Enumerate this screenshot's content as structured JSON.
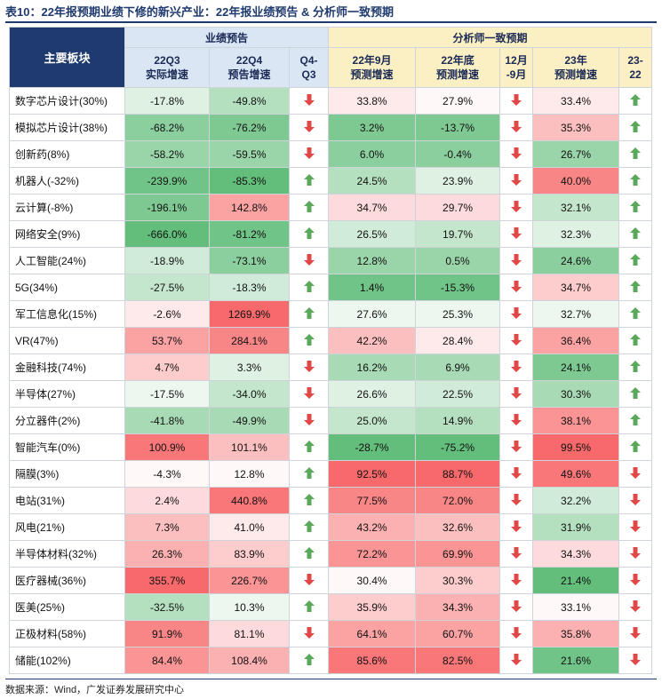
{
  "title": "表10：22年报预期业绩下修的新兴产业：22年报业绩预告 & 分析师一致预期",
  "header": {
    "sector": "主要板块",
    "group1": "业绩预告",
    "group2": "分析师一致预期",
    "c1": [
      "22Q3",
      "实际增速"
    ],
    "c2": [
      "22Q4",
      "预告增速"
    ],
    "c3": [
      "Q4-",
      "Q3"
    ],
    "c4": [
      "22年9月",
      "预测增速"
    ],
    "c5": [
      "22年底",
      "预测增速"
    ],
    "c6": [
      "12月",
      "-9月"
    ],
    "c7": [
      "23年",
      "预测增速"
    ],
    "c8": [
      "23-",
      "22"
    ]
  },
  "colors": {
    "up_arrow": "#5aa85a",
    "down_arrow": "#e04848",
    "green_strong": "#63be7b",
    "green_light": "#e6f4e9",
    "red_strong": "#f8696b",
    "red_light": "#fde4e4"
  },
  "rows": [
    {
      "name": "数字芯片设计(30%)",
      "v1": "-17.8%",
      "v2": "-49.8%",
      "a1": "down",
      "v3": "33.8%",
      "v4": "27.9%",
      "a2": "down",
      "v5": "33.4%",
      "a3": "up"
    },
    {
      "name": "模拟芯片设计(38%)",
      "v1": "-68.2%",
      "v2": "-76.2%",
      "a1": "down",
      "v3": "3.2%",
      "v4": "-13.7%",
      "a2": "down",
      "v5": "35.3%",
      "a3": "up"
    },
    {
      "name": "创新药(8%)",
      "v1": "-58.2%",
      "v2": "-59.5%",
      "a1": "down",
      "v3": "6.0%",
      "v4": "-0.4%",
      "a2": "down",
      "v5": "26.7%",
      "a3": "up"
    },
    {
      "name": "机器人(-32%)",
      "v1": "-239.9%",
      "v2": "-85.3%",
      "a1": "up",
      "v3": "24.5%",
      "v4": "23.9%",
      "a2": "down",
      "v5": "40.0%",
      "a3": "up"
    },
    {
      "name": "云计算(-8%)",
      "v1": "-196.1%",
      "v2": "142.8%",
      "a1": "up",
      "v3": "34.7%",
      "v4": "29.7%",
      "a2": "down",
      "v5": "32.1%",
      "a3": "up"
    },
    {
      "name": "网络安全(9%)",
      "v1": "-666.0%",
      "v2": "-81.2%",
      "a1": "up",
      "v3": "26.5%",
      "v4": "19.7%",
      "a2": "down",
      "v5": "32.3%",
      "a3": "up"
    },
    {
      "name": "人工智能(24%)",
      "v1": "-18.9%",
      "v2": "-73.1%",
      "a1": "down",
      "v3": "12.8%",
      "v4": "0.5%",
      "a2": "down",
      "v5": "24.6%",
      "a3": "up"
    },
    {
      "name": "5G(34%)",
      "v1": "-27.5%",
      "v2": "-18.3%",
      "a1": "up",
      "v3": "1.4%",
      "v4": "-15.3%",
      "a2": "down",
      "v5": "34.7%",
      "a3": "up"
    },
    {
      "name": "军工信息化(15%)",
      "v1": "-2.6%",
      "v2": "1269.9%",
      "a1": "up",
      "v3": "27.6%",
      "v4": "25.3%",
      "a2": "down",
      "v5": "32.7%",
      "a3": "up"
    },
    {
      "name": "VR(47%)",
      "v1": "53.7%",
      "v2": "284.1%",
      "a1": "up",
      "v3": "42.2%",
      "v4": "28.4%",
      "a2": "down",
      "v5": "36.4%",
      "a3": "up"
    },
    {
      "name": "金融科技(74%)",
      "v1": "4.7%",
      "v2": "3.3%",
      "a1": "down",
      "v3": "16.2%",
      "v4": "6.9%",
      "a2": "down",
      "v5": "24.1%",
      "a3": "up"
    },
    {
      "name": "半导体(27%)",
      "v1": "-17.5%",
      "v2": "-34.0%",
      "a1": "down",
      "v3": "26.6%",
      "v4": "22.5%",
      "a2": "down",
      "v5": "30.3%",
      "a3": "up"
    },
    {
      "name": "分立器件(2%)",
      "v1": "-41.8%",
      "v2": "-49.9%",
      "a1": "down",
      "v3": "25.0%",
      "v4": "14.9%",
      "a2": "down",
      "v5": "38.1%",
      "a3": "up"
    },
    {
      "name": "智能汽车(0%)",
      "v1": "100.9%",
      "v2": "101.1%",
      "a1": "up",
      "v3": "-28.7%",
      "v4": "-75.2%",
      "a2": "down",
      "v5": "99.5%",
      "a3": "up"
    },
    {
      "name": "隔膜(3%)",
      "v1": "-4.3%",
      "v2": "12.8%",
      "a1": "up",
      "v3": "92.5%",
      "v4": "88.7%",
      "a2": "down",
      "v5": "49.6%",
      "a3": "down"
    },
    {
      "name": "电站(31%)",
      "v1": "2.4%",
      "v2": "440.8%",
      "a1": "up",
      "v3": "77.5%",
      "v4": "72.0%",
      "a2": "down",
      "v5": "32.2%",
      "a3": "down"
    },
    {
      "name": "风电(21%)",
      "v1": "7.3%",
      "v2": "41.0%",
      "a1": "up",
      "v3": "43.2%",
      "v4": "32.6%",
      "a2": "down",
      "v5": "31.9%",
      "a3": "down"
    },
    {
      "name": "半导体材料(32%)",
      "v1": "26.3%",
      "v2": "83.9%",
      "a1": "up",
      "v3": "72.2%",
      "v4": "69.9%",
      "a2": "down",
      "v5": "34.3%",
      "a3": "down"
    },
    {
      "name": "医疗器械(36%)",
      "v1": "355.7%",
      "v2": "226.7%",
      "a1": "down",
      "v3": "30.4%",
      "v4": "30.3%",
      "a2": "down",
      "v5": "21.4%",
      "a3": "down"
    },
    {
      "name": "医美(25%)",
      "v1": "-32.5%",
      "v2": "10.3%",
      "a1": "up",
      "v3": "35.9%",
      "v4": "34.3%",
      "a2": "down",
      "v5": "33.1%",
      "a3": "down"
    },
    {
      "name": "正极材料(58%)",
      "v1": "91.9%",
      "v2": "81.1%",
      "a1": "down",
      "v3": "64.1%",
      "v4": "60.7%",
      "a2": "down",
      "v5": "35.8%",
      "a3": "down"
    },
    {
      "name": "储能(102%)",
      "v1": "84.4%",
      "v2": "108.4%",
      "a1": "up",
      "v3": "85.6%",
      "v4": "82.5%",
      "a2": "down",
      "v5": "21.6%",
      "a3": "down"
    }
  ],
  "footer": "数据来源：Wind，广发证券发展研究中心"
}
